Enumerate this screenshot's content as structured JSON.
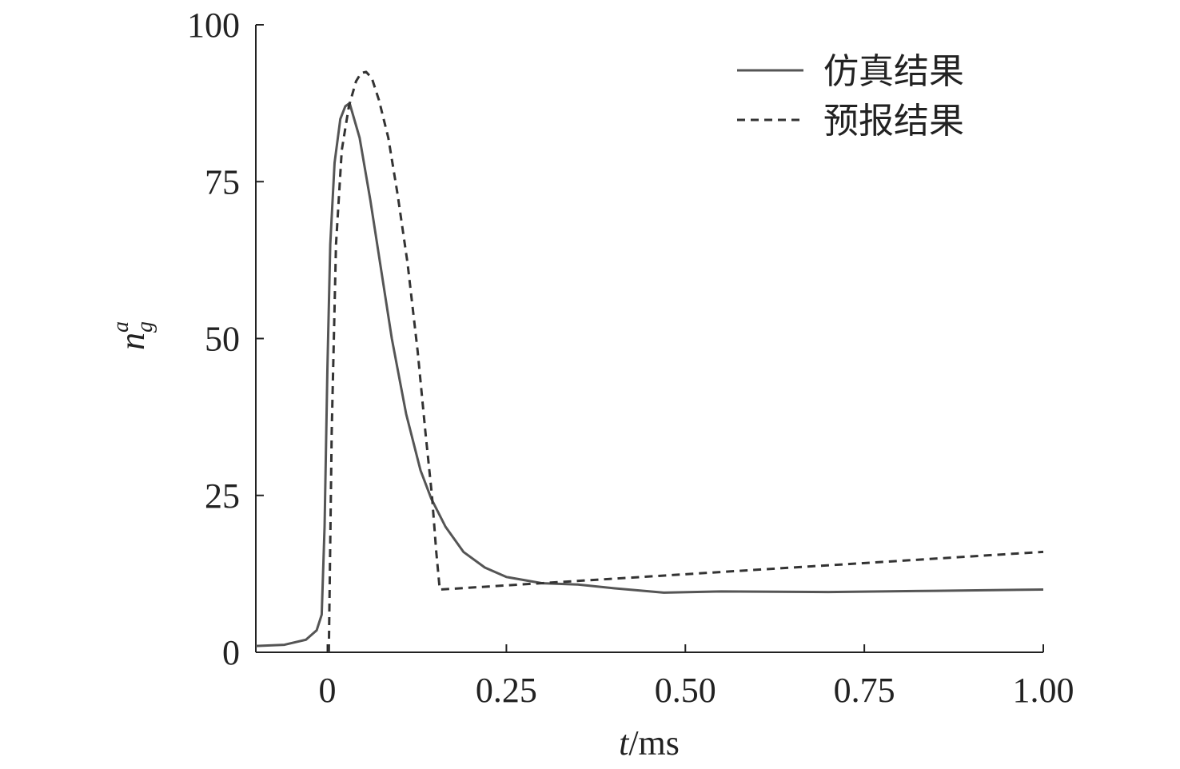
{
  "chart_data": {
    "type": "line",
    "xlabel": {
      "var": "t",
      "unit": "/ms"
    },
    "ylabel": {
      "base": "n",
      "sub": "g",
      "sup": "a"
    },
    "xlim": [
      -0.1,
      1.0
    ],
    "ylim": [
      0,
      100
    ],
    "xticks": [
      0,
      0.25,
      0.5,
      0.75,
      1.0
    ],
    "xtick_labels": [
      "0",
      "0.25",
      "0.50",
      "0.75",
      "1.00"
    ],
    "yticks": [
      0,
      25,
      50,
      75,
      100
    ],
    "ytick_labels": [
      "0",
      "25",
      "50",
      "75",
      "100"
    ],
    "grid": false,
    "legend_position": "top-right",
    "series": [
      {
        "name": "仿真结果",
        "style": "solid",
        "color": "#555555",
        "x": [
          -0.1,
          -0.06,
          -0.03,
          -0.015,
          -0.008,
          -0.004,
          0.0,
          0.004,
          0.01,
          0.018,
          0.025,
          0.031,
          0.045,
          0.06,
          0.075,
          0.09,
          0.11,
          0.13,
          0.145,
          0.165,
          0.19,
          0.22,
          0.25,
          0.3,
          0.35,
          0.4,
          0.47,
          0.55,
          0.7,
          0.85,
          1.0
        ],
        "y": [
          1,
          1.2,
          2,
          3.5,
          6,
          20,
          45,
          65,
          78,
          85,
          87,
          87.5,
          82,
          72,
          61,
          50,
          38,
          29,
          24.5,
          20,
          16,
          13.5,
          12,
          11,
          10.8,
          10.2,
          9.5,
          9.7,
          9.6,
          9.8,
          10
        ]
      },
      {
        "name": "预报结果",
        "style": "dashed",
        "color": "#333333",
        "x": [
          0.002,
          0.006,
          0.012,
          0.02,
          0.03,
          0.04,
          0.047,
          0.054,
          0.062,
          0.072,
          0.085,
          0.098,
          0.112,
          0.126,
          0.137,
          0.146,
          0.152,
          0.157,
          1.0
        ],
        "y": [
          0,
          35,
          65,
          80,
          87,
          91,
          92.3,
          92.5,
          91.5,
          88,
          82,
          73,
          62,
          48,
          35,
          25,
          16,
          10,
          16
        ]
      }
    ]
  }
}
